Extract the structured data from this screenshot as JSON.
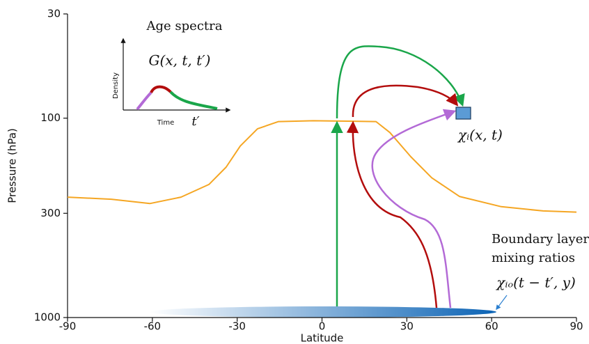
{
  "chart_data": {
    "type": "line",
    "xlabel": "Latitude",
    "ylabel": "Pressure (hPa)",
    "xlim": [
      -90,
      90
    ],
    "xticks": [
      -90,
      -60,
      -30,
      0,
      30,
      60,
      90
    ],
    "ylim": [
      1000,
      30
    ],
    "yticks": [
      30,
      100,
      300,
      1000
    ],
    "log_y": true,
    "color": "#f5a623",
    "x": [
      -90,
      -74.5,
      -60.9,
      -49.9,
      -40,
      -33.9,
      -28.9,
      -22.8,
      -15.4,
      -3.1,
      19.1,
      24,
      31.4,
      38.8,
      48.6,
      63.4,
      78.2,
      90
    ],
    "values": [
      249,
      255,
      268,
      249,
      215,
      176,
      138,
      113,
      104,
      103,
      104,
      118,
      156,
      199,
      247,
      278,
      292,
      296
    ],
    "annotations": {
      "inset_title": "Age spectra",
      "inset_function": "G(x, t, t′)",
      "inset_ylabel": "Density",
      "inset_xlabel": "Time",
      "inset_xvar": "t′",
      "mixing_ratio": "χᵢ(x, t)",
      "boundary_line1": "Boundary layer",
      "boundary_line2": "mixing ratios",
      "boundary_function": "χᵢₒ(t − t′, y)"
    }
  }
}
